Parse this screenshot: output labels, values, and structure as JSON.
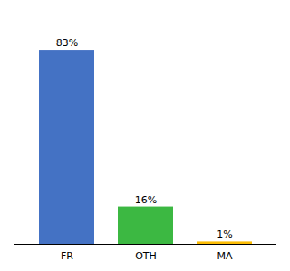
{
  "chart_data": {
    "type": "bar",
    "categories": [
      "FR",
      "OTH",
      "MA"
    ],
    "values": [
      83,
      16,
      1
    ],
    "value_labels": [
      "83%",
      "16%",
      "1%"
    ],
    "colors": [
      "#4472C4",
      "#3CB842",
      "#FBBC04"
    ],
    "ylim": [
      0,
      95
    ],
    "data_labels": true,
    "tick_labels": "x",
    "grid": false
  }
}
